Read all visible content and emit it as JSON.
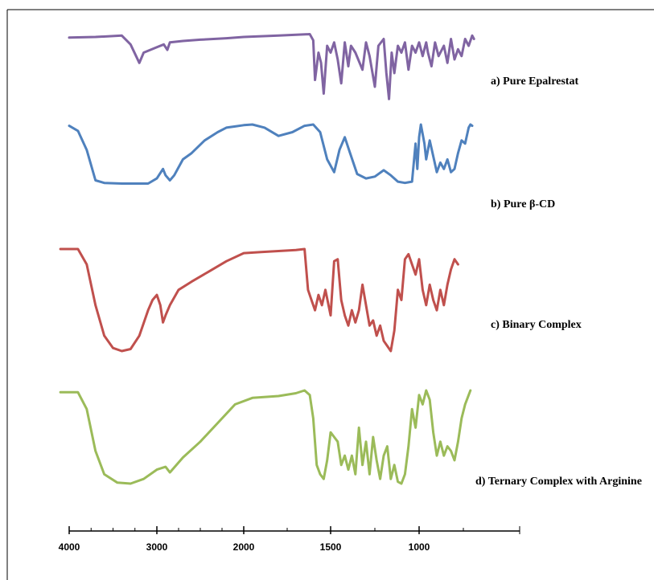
{
  "chart_data": {
    "type": "line",
    "title": "",
    "xlabel": "",
    "ylabel": "",
    "x_reversed": true,
    "xlim": [
      4000,
      500
    ],
    "x_ticks": [
      {
        "value": 4000,
        "label": "4000"
      },
      {
        "value": 3000,
        "label": "3000"
      },
      {
        "value": 2000,
        "label": "2000"
      },
      {
        "value": 1500,
        "label": "1500"
      },
      {
        "value": 1000,
        "label": "1000"
      }
    ],
    "grid": false,
    "legend": "labels beside each trace",
    "series": [
      {
        "name": "a) Pure Epalrestat",
        "color": "#8064a2",
        "points": [
          [
            4000,
            0.08
          ],
          [
            3700,
            0.07
          ],
          [
            3400,
            0.05
          ],
          [
            3300,
            0.18
          ],
          [
            3200,
            0.45
          ],
          [
            3150,
            0.3
          ],
          [
            3000,
            0.22
          ],
          [
            2920,
            0.18
          ],
          [
            2880,
            0.26
          ],
          [
            2850,
            0.15
          ],
          [
            2700,
            0.13
          ],
          [
            2500,
            0.11
          ],
          [
            2200,
            0.09
          ],
          [
            2000,
            0.07
          ],
          [
            1800,
            0.05
          ],
          [
            1620,
            0.03
          ],
          [
            1600,
            0.12
          ],
          [
            1590,
            0.7
          ],
          [
            1570,
            0.3
          ],
          [
            1555,
            0.45
          ],
          [
            1540,
            0.9
          ],
          [
            1520,
            0.2
          ],
          [
            1500,
            0.3
          ],
          [
            1480,
            0.15
          ],
          [
            1460,
            0.4
          ],
          [
            1440,
            0.75
          ],
          [
            1420,
            0.15
          ],
          [
            1400,
            0.5
          ],
          [
            1385,
            0.2
          ],
          [
            1360,
            0.3
          ],
          [
            1320,
            0.55
          ],
          [
            1300,
            0.15
          ],
          [
            1280,
            0.35
          ],
          [
            1250,
            0.8
          ],
          [
            1230,
            0.2
          ],
          [
            1200,
            0.1
          ],
          [
            1185,
            0.6
          ],
          [
            1170,
            0.98
          ],
          [
            1155,
            0.3
          ],
          [
            1140,
            0.6
          ],
          [
            1120,
            0.2
          ],
          [
            1100,
            0.3
          ],
          [
            1080,
            0.15
          ],
          [
            1060,
            0.55
          ],
          [
            1040,
            0.2
          ],
          [
            1020,
            0.3
          ],
          [
            1000,
            0.15
          ],
          [
            980,
            0.35
          ],
          [
            960,
            0.15
          ],
          [
            950,
            0.3
          ],
          [
            930,
            0.5
          ],
          [
            910,
            0.15
          ],
          [
            890,
            0.35
          ],
          [
            860,
            0.2
          ],
          [
            840,
            0.45
          ],
          [
            820,
            0.1
          ],
          [
            800,
            0.4
          ],
          [
            780,
            0.25
          ],
          [
            760,
            0.35
          ],
          [
            740,
            0.1
          ],
          [
            720,
            0.2
          ],
          [
            700,
            0.05
          ],
          [
            690,
            0.1
          ]
        ]
      },
      {
        "name": "b) Pure β-CD",
        "color": "#4f81bd",
        "points": [
          [
            4000,
            0.02
          ],
          [
            3900,
            0.1
          ],
          [
            3800,
            0.4
          ],
          [
            3700,
            0.88
          ],
          [
            3600,
            0.92
          ],
          [
            3400,
            0.93
          ],
          [
            3100,
            0.93
          ],
          [
            3000,
            0.85
          ],
          [
            2930,
            0.7
          ],
          [
            2900,
            0.8
          ],
          [
            2850,
            0.88
          ],
          [
            2800,
            0.8
          ],
          [
            2700,
            0.55
          ],
          [
            2600,
            0.45
          ],
          [
            2450,
            0.25
          ],
          [
            2300,
            0.12
          ],
          [
            2200,
            0.05
          ],
          [
            2100,
            0.03
          ],
          [
            2000,
            0.01
          ],
          [
            1950,
            0.0
          ],
          [
            1880,
            0.05
          ],
          [
            1800,
            0.18
          ],
          [
            1720,
            0.12
          ],
          [
            1650,
            0.02
          ],
          [
            1600,
            0.0
          ],
          [
            1560,
            0.12
          ],
          [
            1520,
            0.55
          ],
          [
            1480,
            0.75
          ],
          [
            1450,
            0.4
          ],
          [
            1420,
            0.2
          ],
          [
            1390,
            0.45
          ],
          [
            1350,
            0.78
          ],
          [
            1300,
            0.85
          ],
          [
            1250,
            0.82
          ],
          [
            1200,
            0.72
          ],
          [
            1160,
            0.8
          ],
          [
            1120,
            0.9
          ],
          [
            1080,
            0.92
          ],
          [
            1040,
            0.9
          ],
          [
            1030,
            0.6
          ],
          [
            1020,
            0.3
          ],
          [
            1010,
            0.7
          ],
          [
            1000,
            0.2
          ],
          [
            990,
            0.0
          ],
          [
            970,
            0.3
          ],
          [
            960,
            0.55
          ],
          [
            940,
            0.25
          ],
          [
            920,
            0.5
          ],
          [
            900,
            0.75
          ],
          [
            880,
            0.6
          ],
          [
            860,
            0.7
          ],
          [
            840,
            0.55
          ],
          [
            820,
            0.75
          ],
          [
            800,
            0.7
          ],
          [
            780,
            0.45
          ],
          [
            760,
            0.25
          ],
          [
            740,
            0.3
          ],
          [
            720,
            0.05
          ],
          [
            710,
            0.0
          ],
          [
            700,
            0.02
          ]
        ]
      },
      {
        "name": "c) Binary Complex",
        "color": "#c0504d",
        "points": [
          [
            4100,
            0.0
          ],
          [
            3900,
            0.0
          ],
          [
            3800,
            0.15
          ],
          [
            3700,
            0.55
          ],
          [
            3600,
            0.85
          ],
          [
            3500,
            0.97
          ],
          [
            3400,
            1.0
          ],
          [
            3300,
            0.98
          ],
          [
            3200,
            0.85
          ],
          [
            3100,
            0.6
          ],
          [
            3050,
            0.5
          ],
          [
            3000,
            0.45
          ],
          [
            2960,
            0.55
          ],
          [
            2930,
            0.72
          ],
          [
            2900,
            0.65
          ],
          [
            2850,
            0.55
          ],
          [
            2750,
            0.4
          ],
          [
            2600,
            0.32
          ],
          [
            2400,
            0.22
          ],
          [
            2200,
            0.12
          ],
          [
            2000,
            0.04
          ],
          [
            1900,
            0.03
          ],
          [
            1800,
            0.02
          ],
          [
            1700,
            0.01
          ],
          [
            1650,
            0.0
          ],
          [
            1630,
            0.4
          ],
          [
            1610,
            0.5
          ],
          [
            1590,
            0.6
          ],
          [
            1570,
            0.45
          ],
          [
            1550,
            0.55
          ],
          [
            1530,
            0.4
          ],
          [
            1500,
            0.65
          ],
          [
            1480,
            0.12
          ],
          [
            1460,
            0.1
          ],
          [
            1440,
            0.5
          ],
          [
            1420,
            0.65
          ],
          [
            1400,
            0.75
          ],
          [
            1380,
            0.6
          ],
          [
            1360,
            0.72
          ],
          [
            1340,
            0.6
          ],
          [
            1320,
            0.35
          ],
          [
            1300,
            0.55
          ],
          [
            1280,
            0.75
          ],
          [
            1260,
            0.7
          ],
          [
            1240,
            0.85
          ],
          [
            1220,
            0.75
          ],
          [
            1200,
            0.9
          ],
          [
            1180,
            0.95
          ],
          [
            1160,
            1.0
          ],
          [
            1140,
            0.8
          ],
          [
            1120,
            0.4
          ],
          [
            1100,
            0.5
          ],
          [
            1080,
            0.1
          ],
          [
            1060,
            0.05
          ],
          [
            1040,
            0.15
          ],
          [
            1020,
            0.25
          ],
          [
            1000,
            0.1
          ],
          [
            980,
            0.4
          ],
          [
            960,
            0.55
          ],
          [
            940,
            0.35
          ],
          [
            920,
            0.5
          ],
          [
            900,
            0.6
          ],
          [
            880,
            0.4
          ],
          [
            860,
            0.55
          ],
          [
            840,
            0.35
          ],
          [
            820,
            0.2
          ],
          [
            800,
            0.1
          ],
          [
            780,
            0.15
          ]
        ]
      },
      {
        "name": "d) Ternary Complex with Arginine",
        "color": "#9bbb59",
        "points": [
          [
            4100,
            0.02
          ],
          [
            3900,
            0.02
          ],
          [
            3800,
            0.2
          ],
          [
            3700,
            0.65
          ],
          [
            3600,
            0.9
          ],
          [
            3450,
            0.99
          ],
          [
            3300,
            1.0
          ],
          [
            3150,
            0.95
          ],
          [
            3000,
            0.85
          ],
          [
            2900,
            0.82
          ],
          [
            2850,
            0.88
          ],
          [
            2700,
            0.72
          ],
          [
            2500,
            0.55
          ],
          [
            2300,
            0.35
          ],
          [
            2100,
            0.15
          ],
          [
            1950,
            0.08
          ],
          [
            1800,
            0.06
          ],
          [
            1700,
            0.03
          ],
          [
            1650,
            0.0
          ],
          [
            1620,
            0.05
          ],
          [
            1600,
            0.3
          ],
          [
            1580,
            0.8
          ],
          [
            1560,
            0.9
          ],
          [
            1540,
            0.95
          ],
          [
            1520,
            0.75
          ],
          [
            1500,
            0.45
          ],
          [
            1480,
            0.5
          ],
          [
            1460,
            0.55
          ],
          [
            1440,
            0.8
          ],
          [
            1420,
            0.7
          ],
          [
            1400,
            0.85
          ],
          [
            1380,
            0.7
          ],
          [
            1360,
            0.9
          ],
          [
            1340,
            0.4
          ],
          [
            1320,
            0.8
          ],
          [
            1300,
            0.55
          ],
          [
            1280,
            0.9
          ],
          [
            1260,
            0.5
          ],
          [
            1240,
            0.75
          ],
          [
            1220,
            0.95
          ],
          [
            1200,
            0.7
          ],
          [
            1180,
            0.6
          ],
          [
            1160,
            0.95
          ],
          [
            1140,
            0.8
          ],
          [
            1120,
            0.98
          ],
          [
            1100,
            1.0
          ],
          [
            1080,
            0.9
          ],
          [
            1060,
            0.6
          ],
          [
            1040,
            0.2
          ],
          [
            1020,
            0.4
          ],
          [
            1000,
            0.05
          ],
          [
            980,
            0.15
          ],
          [
            960,
            0.0
          ],
          [
            940,
            0.1
          ],
          [
            920,
            0.45
          ],
          [
            900,
            0.7
          ],
          [
            880,
            0.55
          ],
          [
            860,
            0.7
          ],
          [
            840,
            0.6
          ],
          [
            820,
            0.65
          ],
          [
            800,
            0.75
          ],
          [
            780,
            0.55
          ],
          [
            760,
            0.3
          ],
          [
            740,
            0.15
          ],
          [
            720,
            0.05
          ],
          [
            710,
            0.0
          ]
        ]
      }
    ]
  }
}
